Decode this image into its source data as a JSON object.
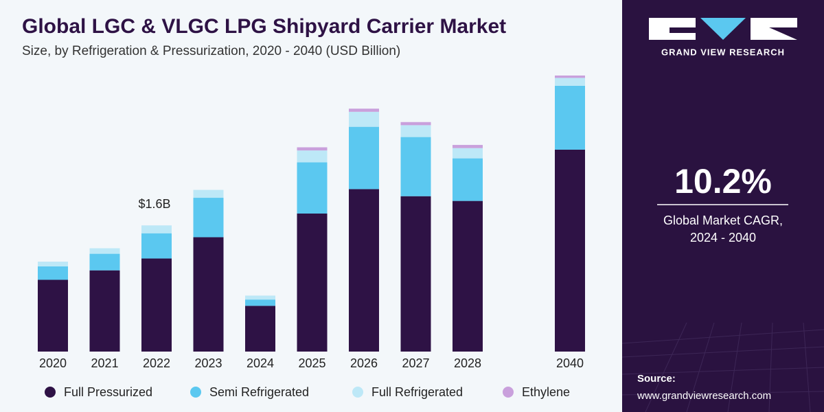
{
  "chart_data": {
    "type": "stacked-bar",
    "title": "Global LGC & VLGC LPG Shipyard Carrier Market",
    "subtitle": "Size, by Refrigeration & Pressurization, 2020 - 2040 (USD Billion)",
    "categories": [
      "2020",
      "2021",
      "2022",
      "2023",
      "2024",
      "2025",
      "2026",
      "2027",
      "2028",
      "2040"
    ],
    "ylim": [
      0,
      3.5
    ],
    "series": [
      {
        "name": "Full Pressurized",
        "color": "#2e1245",
        "values": [
          0.91,
          1.03,
          1.18,
          1.45,
          0.58,
          1.75,
          2.06,
          1.97,
          1.91,
          2.56
        ]
      },
      {
        "name": "Semi Refrigerated",
        "color": "#5bc8f0",
        "values": [
          0.17,
          0.21,
          0.32,
          0.5,
          0.08,
          0.65,
          0.79,
          0.75,
          0.54,
          0.81
        ]
      },
      {
        "name": "Full Refrigerated",
        "color": "#bde8f7",
        "values": [
          0.06,
          0.07,
          0.1,
          0.1,
          0.05,
          0.15,
          0.19,
          0.15,
          0.13,
          0.1
        ]
      },
      {
        "name": "Ethylene",
        "color": "#c9a0dc",
        "values": [
          0,
          0,
          0,
          0,
          0,
          0.04,
          0.04,
          0.04,
          0.04,
          0.03
        ]
      }
    ],
    "total_label": {
      "category": "2022",
      "label": "$1.6B"
    }
  },
  "panel": {
    "brand": "GRAND VIEW RESEARCH",
    "cagr": "10.2%",
    "cagr_text": [
      "Global Market CAGR,",
      "2024 - 2040"
    ],
    "source_title": "Source:",
    "source_url": "www.grandviewresearch.com"
  }
}
